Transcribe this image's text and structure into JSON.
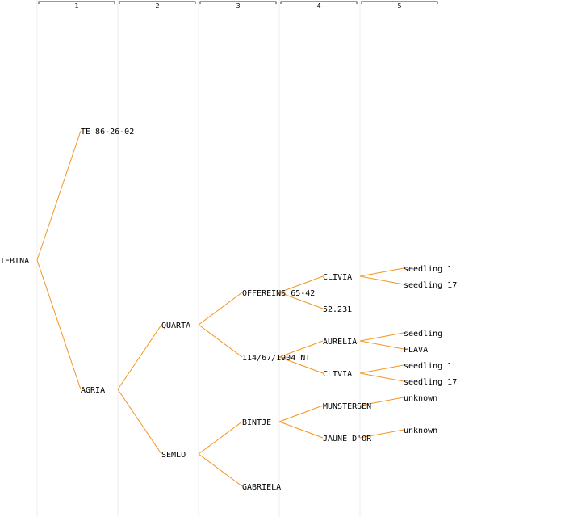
{
  "generations": [
    "1",
    "2",
    "3",
    "4",
    "5"
  ],
  "colors": {
    "edge": "#f5941e",
    "column_line": "#ececec",
    "text": "#000000"
  },
  "tree": {
    "root": "TEBINA",
    "nodes": [
      {
        "id": "tebina",
        "label": "TEBINA",
        "gen": 0,
        "row": 16,
        "parent": null
      },
      {
        "id": "te86",
        "label": "TE 86-26-02",
        "gen": 1,
        "row": 8,
        "parent": "tebina"
      },
      {
        "id": "agria",
        "label": "AGRIA",
        "gen": 1,
        "row": 24,
        "parent": "tebina"
      },
      {
        "id": "quarta",
        "label": "QUARTA",
        "gen": 2,
        "row": 20,
        "parent": "agria"
      },
      {
        "id": "semlo",
        "label": "SEMLO",
        "gen": 2,
        "row": 28,
        "parent": "agria"
      },
      {
        "id": "offereins",
        "label": "OFFEREINS 65-42",
        "gen": 3,
        "row": 18,
        "parent": "quarta"
      },
      {
        "id": "p114",
        "label": "114/67/1904 NT",
        "gen": 3,
        "row": 22,
        "parent": "quarta"
      },
      {
        "id": "bintje",
        "label": "BINTJE",
        "gen": 3,
        "row": 26,
        "parent": "semlo"
      },
      {
        "id": "gabriela",
        "label": "GABRIELA",
        "gen": 3,
        "row": 30,
        "parent": "semlo"
      },
      {
        "id": "clivia1",
        "label": "CLIVIA",
        "gen": 4,
        "row": 17,
        "parent": "offereins"
      },
      {
        "id": "n52231",
        "label": "52.231",
        "gen": 4,
        "row": 19,
        "parent": "offereins"
      },
      {
        "id": "aurelia",
        "label": "AURELIA",
        "gen": 4,
        "row": 21,
        "parent": "p114"
      },
      {
        "id": "clivia2",
        "label": "CLIVIA",
        "gen": 4,
        "row": 23,
        "parent": "p114"
      },
      {
        "id": "munstersen",
        "label": "MUNSTERSEN",
        "gen": 4,
        "row": 25,
        "parent": "bintje"
      },
      {
        "id": "jaune",
        "label": "JAUNE D'OR",
        "gen": 4,
        "row": 27,
        "parent": "bintje"
      },
      {
        "id": "s1a",
        "label": "seedling 1",
        "gen": 5,
        "row": 16.5,
        "parent": "clivia1"
      },
      {
        "id": "s17a",
        "label": "seedling 17",
        "gen": 5,
        "row": 17.5,
        "parent": "clivia1"
      },
      {
        "id": "seedling",
        "label": "seedling",
        "gen": 5,
        "row": 20.5,
        "parent": "aurelia"
      },
      {
        "id": "flava",
        "label": "FLAVA",
        "gen": 5,
        "row": 21.5,
        "parent": "aurelia"
      },
      {
        "id": "s1b",
        "label": "seedling 1",
        "gen": 5,
        "row": 22.5,
        "parent": "clivia2"
      },
      {
        "id": "s17b",
        "label": "seedling 17",
        "gen": 5,
        "row": 23.5,
        "parent": "clivia2"
      },
      {
        "id": "unk1",
        "label": "unknown",
        "gen": 5,
        "row": 24.5,
        "parent": "munstersen"
      },
      {
        "id": "unk2",
        "label": "unknown",
        "gen": 5,
        "row": 26.5,
        "parent": "jaune"
      }
    ]
  }
}
